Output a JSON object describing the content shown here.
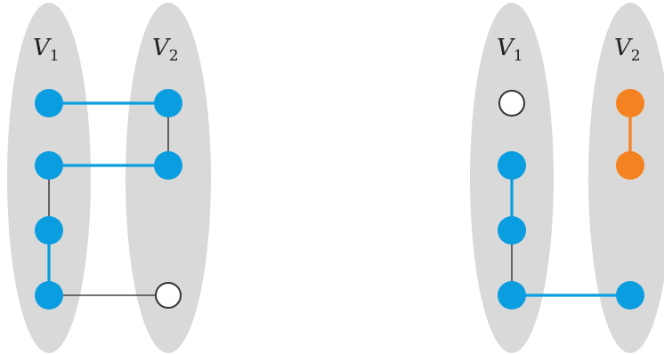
{
  "colors": {
    "ellipse": "#d9d9d9",
    "blue": "#0a9ee0",
    "orange": "#f58220",
    "white": "#ffffff",
    "stroke": "#333333",
    "edge_gray": "#444444"
  },
  "left_panel": {
    "v1": {
      "letter": "V",
      "sub": "1"
    },
    "v2": {
      "letter": "V",
      "sub": "2"
    }
  },
  "right_panel": {
    "v1": {
      "letter": "V",
      "sub": "1"
    },
    "v2": {
      "letter": "V",
      "sub": "2"
    }
  },
  "graphs": [
    {
      "name": "left",
      "nodes": [
        {
          "id": "a1",
          "fill": "blue"
        },
        {
          "id": "a2",
          "fill": "blue"
        },
        {
          "id": "a3",
          "fill": "blue"
        },
        {
          "id": "a4",
          "fill": "blue"
        },
        {
          "id": "b1",
          "fill": "blue"
        },
        {
          "id": "b2",
          "fill": "blue"
        },
        {
          "id": "b4",
          "fill": "white"
        }
      ],
      "edges": [
        {
          "from": "a1",
          "to": "b1",
          "color": "blue"
        },
        {
          "from": "b1",
          "to": "b2",
          "color": "gray"
        },
        {
          "from": "a2",
          "to": "b2",
          "color": "blue"
        },
        {
          "from": "a2",
          "to": "a3",
          "color": "gray"
        },
        {
          "from": "a3",
          "to": "a4",
          "color": "blue"
        },
        {
          "from": "a4",
          "to": "b4",
          "color": "gray"
        }
      ]
    },
    {
      "name": "right",
      "nodes": [
        {
          "id": "c1",
          "fill": "white"
        },
        {
          "id": "c2",
          "fill": "blue"
        },
        {
          "id": "c3",
          "fill": "blue"
        },
        {
          "id": "c4",
          "fill": "blue"
        },
        {
          "id": "d1",
          "fill": "orange"
        },
        {
          "id": "d2",
          "fill": "orange"
        },
        {
          "id": "d4",
          "fill": "blue"
        }
      ],
      "edges": [
        {
          "from": "d1",
          "to": "d2",
          "color": "orange"
        },
        {
          "from": "c2",
          "to": "c3",
          "color": "blue"
        },
        {
          "from": "c3",
          "to": "c4",
          "color": "gray"
        },
        {
          "from": "c4",
          "to": "d4",
          "color": "blue"
        }
      ]
    }
  ]
}
